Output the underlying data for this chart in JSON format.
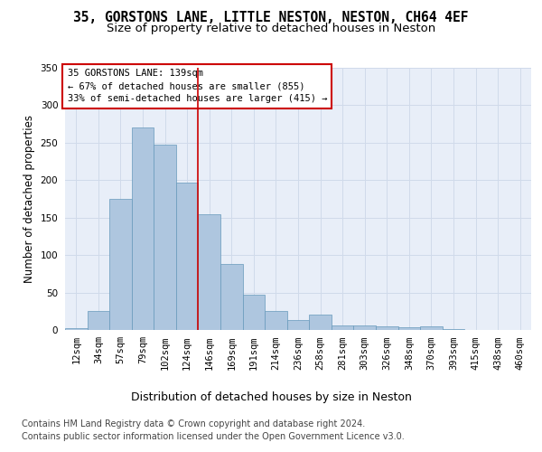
{
  "title1": "35, GORSTONS LANE, LITTLE NESTON, NESTON, CH64 4EF",
  "title2": "Size of property relative to detached houses in Neston",
  "xlabel": "Distribution of detached houses by size in Neston",
  "ylabel": "Number of detached properties",
  "categories": [
    "12sqm",
    "34sqm",
    "57sqm",
    "79sqm",
    "102sqm",
    "124sqm",
    "146sqm",
    "169sqm",
    "191sqm",
    "214sqm",
    "236sqm",
    "258sqm",
    "281sqm",
    "303sqm",
    "326sqm",
    "348sqm",
    "370sqm",
    "393sqm",
    "415sqm",
    "438sqm",
    "460sqm"
  ],
  "values": [
    2,
    25,
    175,
    270,
    247,
    197,
    155,
    88,
    47,
    25,
    13,
    20,
    6,
    6,
    5,
    4,
    5,
    1,
    0,
    0,
    0
  ],
  "bar_color": "#aec6df",
  "bar_edge_color": "#6699bb",
  "grid_color": "#d0daea",
  "bg_color": "#e8eef8",
  "vline_color": "#cc0000",
  "annotation_text": "35 GORSTONS LANE: 139sqm\n← 67% of detached houses are smaller (855)\n33% of semi-detached houses are larger (415) →",
  "annotation_box_color": "#ffffff",
  "annotation_box_edge": "#cc0000",
  "ylim": [
    0,
    350
  ],
  "yticks": [
    0,
    50,
    100,
    150,
    200,
    250,
    300,
    350
  ],
  "footer1": "Contains HM Land Registry data © Crown copyright and database right 2024.",
  "footer2": "Contains public sector information licensed under the Open Government Licence v3.0.",
  "title1_fontsize": 10.5,
  "title2_fontsize": 9.5,
  "xlabel_fontsize": 9,
  "ylabel_fontsize": 8.5,
  "tick_fontsize": 7.5,
  "footer_fontsize": 7.0,
  "vline_xindex": 5.5
}
